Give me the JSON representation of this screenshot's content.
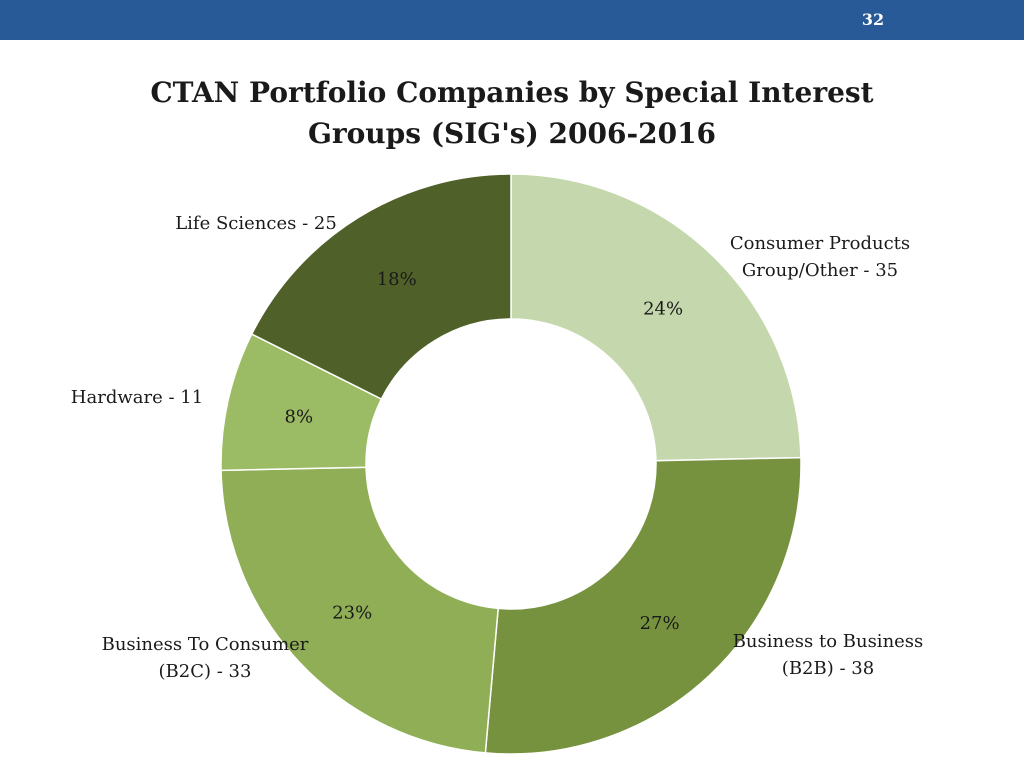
{
  "header": {
    "page_number": "32",
    "bar_color": "#285a98"
  },
  "chart_data": {
    "type": "pie",
    "variant": "donut",
    "title": [
      "CTAN Portfolio Companies by Special Interest",
      "Groups (SIG's) 2006-2016"
    ],
    "legend": "none",
    "slices": [
      {
        "label": [
          "Consumer Products",
          "Group/Other - 35"
        ],
        "value": 35,
        "percent_label": "24%",
        "color": "#c5d8ad"
      },
      {
        "label": [
          "Business to Business",
          "(B2B) - 38"
        ],
        "value": 38,
        "percent_label": "27%",
        "color": "#77923e"
      },
      {
        "label": [
          "Business To Consumer",
          "(B2C) - 33"
        ],
        "value": 33,
        "percent_label": "23%",
        "color": "#8fae55"
      },
      {
        "label": [
          "Hardware - 11"
        ],
        "value": 11,
        "percent_label": "8%",
        "color": "#9bbb64"
      },
      {
        "label": [
          "Life Sciences - 25"
        ],
        "value": 25,
        "percent_label": "18%",
        "color": "#4f6128"
      }
    ]
  }
}
